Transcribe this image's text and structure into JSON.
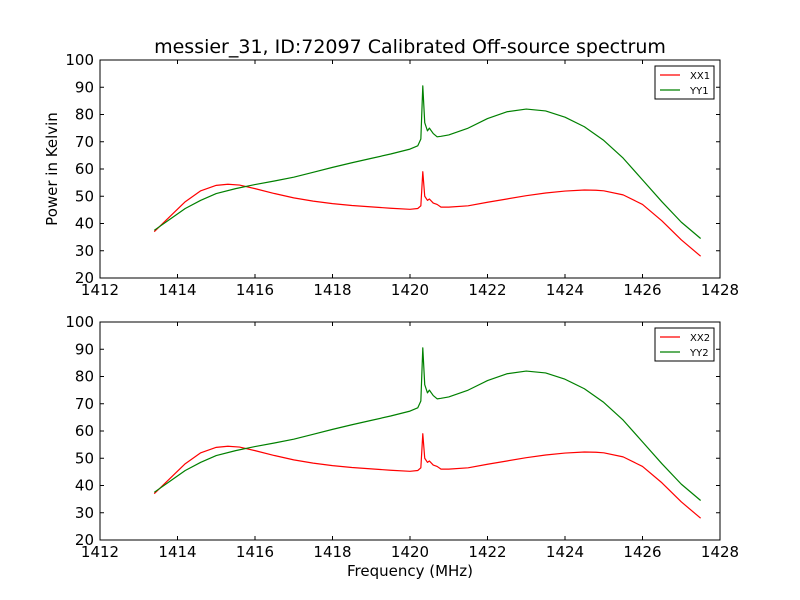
{
  "figure": {
    "title": "messier_31, ID:72097 Calibrated Off-source spectrum"
  },
  "chart_data": [
    {
      "type": "line",
      "title": "messier_31, ID:72097 Calibrated Off-source spectrum",
      "xlabel": "",
      "ylabel": "Power in Kelvin",
      "xlim": [
        1412,
        1428
      ],
      "ylim": [
        20,
        100
      ],
      "xticks": [
        1412,
        1414,
        1416,
        1418,
        1420,
        1422,
        1424,
        1426,
        1428
      ],
      "yticks": [
        20,
        30,
        40,
        50,
        60,
        70,
        80,
        90,
        100
      ],
      "grid": false,
      "legend_position": "top-right",
      "series": [
        {
          "name": "XX1",
          "color": "#ff0000",
          "x": [
            1413.4,
            1413.8,
            1414.2,
            1414.6,
            1415.0,
            1415.3,
            1415.6,
            1416.0,
            1416.5,
            1417.0,
            1417.5,
            1418.0,
            1418.5,
            1419.0,
            1419.5,
            1420.0,
            1420.2,
            1420.28,
            1420.33,
            1420.38,
            1420.45,
            1420.5,
            1420.6,
            1420.7,
            1420.8,
            1421.0,
            1421.5,
            1422.0,
            1422.5,
            1423.0,
            1423.5,
            1424.0,
            1424.5,
            1424.8,
            1425.0,
            1425.5,
            1426.0,
            1426.5,
            1427.0,
            1427.5
          ],
          "y": [
            37.0,
            42.5,
            48.0,
            52.0,
            54.0,
            54.4,
            54.1,
            52.8,
            51.0,
            49.4,
            48.2,
            47.3,
            46.6,
            46.1,
            45.6,
            45.2,
            45.5,
            46.5,
            59.0,
            50.0,
            48.5,
            49.0,
            47.5,
            47.0,
            46.0,
            46.0,
            46.5,
            47.8,
            49.0,
            50.2,
            51.2,
            51.9,
            52.3,
            52.2,
            52.0,
            50.5,
            47.0,
            41.0,
            34.0,
            28.0
          ]
        },
        {
          "name": "YY1",
          "color": "#008000",
          "x": [
            1413.4,
            1413.8,
            1414.2,
            1414.6,
            1415.0,
            1415.5,
            1416.0,
            1416.5,
            1417.0,
            1417.5,
            1418.0,
            1418.5,
            1419.0,
            1419.5,
            1420.0,
            1420.2,
            1420.28,
            1420.33,
            1420.38,
            1420.45,
            1420.5,
            1420.6,
            1420.7,
            1420.8,
            1421.0,
            1421.5,
            1422.0,
            1422.5,
            1423.0,
            1423.5,
            1424.0,
            1424.5,
            1425.0,
            1425.5,
            1426.0,
            1426.5,
            1427.0,
            1427.5
          ],
          "y": [
            37.5,
            41.5,
            45.5,
            48.5,
            51.0,
            52.8,
            54.3,
            55.6,
            57.0,
            58.8,
            60.6,
            62.3,
            63.9,
            65.5,
            67.3,
            68.5,
            71.0,
            90.5,
            77.0,
            74.0,
            75.0,
            73.0,
            71.8,
            72.0,
            72.5,
            75.0,
            78.5,
            81.0,
            82.0,
            81.3,
            79.0,
            75.5,
            70.5,
            64.0,
            56.0,
            48.0,
            40.5,
            34.5
          ]
        }
      ]
    },
    {
      "type": "line",
      "title": "",
      "xlabel": "Frequency (MHz)",
      "ylabel": "",
      "xlim": [
        1412,
        1428
      ],
      "ylim": [
        20,
        100
      ],
      "xticks": [
        1412,
        1414,
        1416,
        1418,
        1420,
        1422,
        1424,
        1426,
        1428
      ],
      "yticks": [
        20,
        30,
        40,
        50,
        60,
        70,
        80,
        90,
        100
      ],
      "grid": false,
      "legend_position": "top-right",
      "series": [
        {
          "name": "XX2",
          "color": "#ff0000",
          "x": [
            1413.4,
            1413.8,
            1414.2,
            1414.6,
            1415.0,
            1415.3,
            1415.6,
            1416.0,
            1416.5,
            1417.0,
            1417.5,
            1418.0,
            1418.5,
            1419.0,
            1419.5,
            1420.0,
            1420.2,
            1420.28,
            1420.33,
            1420.38,
            1420.45,
            1420.5,
            1420.6,
            1420.7,
            1420.8,
            1421.0,
            1421.5,
            1422.0,
            1422.5,
            1423.0,
            1423.5,
            1424.0,
            1424.5,
            1424.8,
            1425.0,
            1425.5,
            1426.0,
            1426.5,
            1427.0,
            1427.5
          ],
          "y": [
            37.0,
            42.5,
            48.0,
            52.0,
            54.0,
            54.4,
            54.1,
            52.8,
            51.0,
            49.4,
            48.2,
            47.3,
            46.6,
            46.1,
            45.6,
            45.2,
            45.5,
            46.5,
            59.0,
            50.0,
            48.5,
            49.0,
            47.5,
            47.0,
            46.0,
            46.0,
            46.5,
            47.8,
            49.0,
            50.2,
            51.2,
            51.9,
            52.3,
            52.2,
            52.0,
            50.5,
            47.0,
            41.0,
            34.0,
            28.0
          ]
        },
        {
          "name": "YY2",
          "color": "#008000",
          "x": [
            1413.4,
            1413.8,
            1414.2,
            1414.6,
            1415.0,
            1415.5,
            1416.0,
            1416.5,
            1417.0,
            1417.5,
            1418.0,
            1418.5,
            1419.0,
            1419.5,
            1420.0,
            1420.2,
            1420.28,
            1420.33,
            1420.38,
            1420.45,
            1420.5,
            1420.6,
            1420.7,
            1420.8,
            1421.0,
            1421.5,
            1422.0,
            1422.5,
            1423.0,
            1423.5,
            1424.0,
            1424.5,
            1425.0,
            1425.5,
            1426.0,
            1426.5,
            1427.0,
            1427.5
          ],
          "y": [
            37.5,
            41.5,
            45.5,
            48.5,
            51.0,
            52.8,
            54.3,
            55.6,
            57.0,
            58.8,
            60.6,
            62.3,
            63.9,
            65.5,
            67.3,
            68.5,
            71.0,
            90.5,
            77.0,
            74.0,
            75.0,
            73.0,
            71.8,
            72.0,
            72.5,
            75.0,
            78.5,
            81.0,
            82.0,
            81.3,
            79.0,
            75.5,
            70.5,
            64.0,
            56.0,
            48.0,
            40.5,
            34.5
          ]
        }
      ]
    }
  ]
}
